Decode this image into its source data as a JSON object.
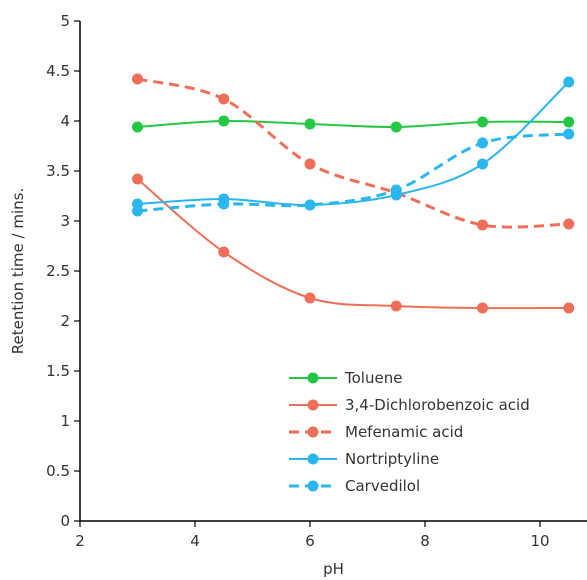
{
  "chart_data": {
    "type": "line",
    "title": "",
    "xlabel": "pH",
    "ylabel": "Retention time / mins.",
    "xlim": [
      2,
      10.6
    ],
    "ylim": [
      0,
      5
    ],
    "xticks": [
      2,
      4,
      6,
      8,
      10
    ],
    "yticks": [
      0,
      0.5,
      1,
      1.5,
      2,
      2.5,
      3,
      3.5,
      4,
      4.5,
      5
    ],
    "xtick_labels": [
      "2",
      "4",
      "6",
      "8",
      "10"
    ],
    "ytick_labels": [
      "0",
      "0.5",
      "1",
      "1.5",
      "2",
      "2.5",
      "3",
      "3.5",
      "4",
      "4.5",
      "5"
    ],
    "grid": false,
    "legend_position": "bottom-right",
    "x": [
      3,
      4.5,
      6,
      7.5,
      9,
      10.5
    ],
    "series": [
      {
        "name": "Toluene",
        "color": "#22c744",
        "dashed": false,
        "values": [
          3.94,
          4.0,
          3.97,
          3.94,
          3.99,
          3.99
        ]
      },
      {
        "name": "3,4-Dichlorobenzoic acid",
        "color": "#ee6f57",
        "dashed": false,
        "values": [
          3.42,
          2.69,
          2.23,
          2.15,
          2.13,
          2.13
        ]
      },
      {
        "name": "Mefenamic acid",
        "color": "#ee6f57",
        "dashed": true,
        "values": [
          4.42,
          4.22,
          3.57,
          3.28,
          2.96,
          2.97
        ]
      },
      {
        "name": "Nortriptyline",
        "color": "#2bb6ee",
        "dashed": false,
        "values": [
          3.17,
          3.22,
          3.16,
          3.26,
          3.57,
          4.39
        ]
      },
      {
        "name": "Carvedilol",
        "color": "#2bb6ee",
        "dashed": true,
        "values": [
          3.1,
          3.17,
          3.16,
          3.31,
          3.78,
          3.87
        ]
      }
    ]
  }
}
